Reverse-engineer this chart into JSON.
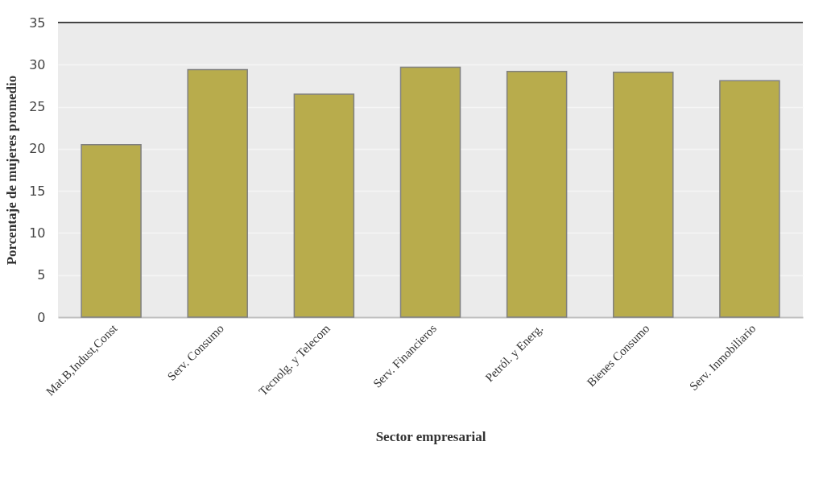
{
  "chart_data": {
    "type": "bar",
    "xlabel": "Sector empresarial",
    "ylabel": "Porcentaje de mujeres promedio",
    "categories": [
      "Mat.B,Indust,Const",
      "Serv. Consumo",
      "Tecnolg. y Telecom",
      "Serv. Financieros",
      "Petról. y Energ.",
      "Bienes Consumo",
      "Serv. Inmobiliario"
    ],
    "values": [
      20.5,
      29.4,
      26.5,
      29.7,
      29.2,
      29.1,
      28.1
    ],
    "color": "#b8ac4c",
    "ylim": [
      0,
      35
    ],
    "yticks": [
      0,
      5,
      10,
      15,
      20,
      25,
      30,
      35
    ],
    "grid": "y"
  }
}
